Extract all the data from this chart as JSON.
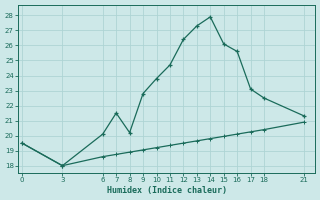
{
  "xlabel": "Humidex (Indice chaleur)",
  "background_color": "#cde8e8",
  "line_color": "#1a6b5a",
  "grid_color": "#aed4d4",
  "x_ticks": [
    0,
    3,
    6,
    7,
    8,
    9,
    10,
    11,
    12,
    13,
    14,
    15,
    16,
    17,
    18,
    21
  ],
  "ylim": [
    17.5,
    28.7
  ],
  "xlim": [
    -0.3,
    21.8
  ],
  "yticks": [
    18,
    19,
    20,
    21,
    22,
    23,
    24,
    25,
    26,
    27,
    28
  ],
  "line1_x": [
    0,
    3,
    6,
    7,
    8,
    9,
    10,
    11,
    12,
    13,
    14,
    15,
    16,
    17,
    18,
    21
  ],
  "line1_y": [
    19.5,
    18.0,
    20.1,
    21.5,
    20.2,
    22.8,
    23.8,
    24.7,
    26.4,
    27.3,
    27.9,
    26.1,
    25.6,
    23.1,
    22.5,
    21.3
  ],
  "line2_x": [
    0,
    3,
    6,
    7,
    8,
    9,
    10,
    11,
    12,
    13,
    14,
    15,
    16,
    17,
    18,
    21
  ],
  "line2_y": [
    19.5,
    18.0,
    18.6,
    18.75,
    18.9,
    19.05,
    19.2,
    19.35,
    19.5,
    19.65,
    19.8,
    19.95,
    20.1,
    20.25,
    20.4,
    20.9
  ]
}
